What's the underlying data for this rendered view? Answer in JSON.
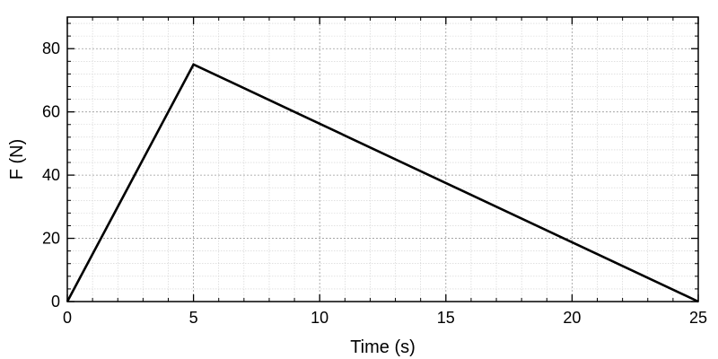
{
  "chart_data": {
    "type": "line",
    "title": "",
    "xlabel": "Time (s)",
    "ylabel": "F (N)",
    "xlim": [
      0,
      25
    ],
    "ylim": [
      0,
      90
    ],
    "x_ticks": [
      0,
      5,
      10,
      15,
      20,
      25
    ],
    "x_tick_labels": [
      "0",
      "5",
      "10",
      "15",
      "20",
      "25"
    ],
    "y_ticks": [
      0,
      20,
      40,
      60,
      80
    ],
    "y_tick_labels": [
      "0",
      "20",
      "40",
      "60",
      "80"
    ],
    "grid": true,
    "series": [
      {
        "x": [
          0,
          5,
          25
        ],
        "y": [
          0,
          75,
          0
        ],
        "color": "#000000"
      }
    ]
  }
}
